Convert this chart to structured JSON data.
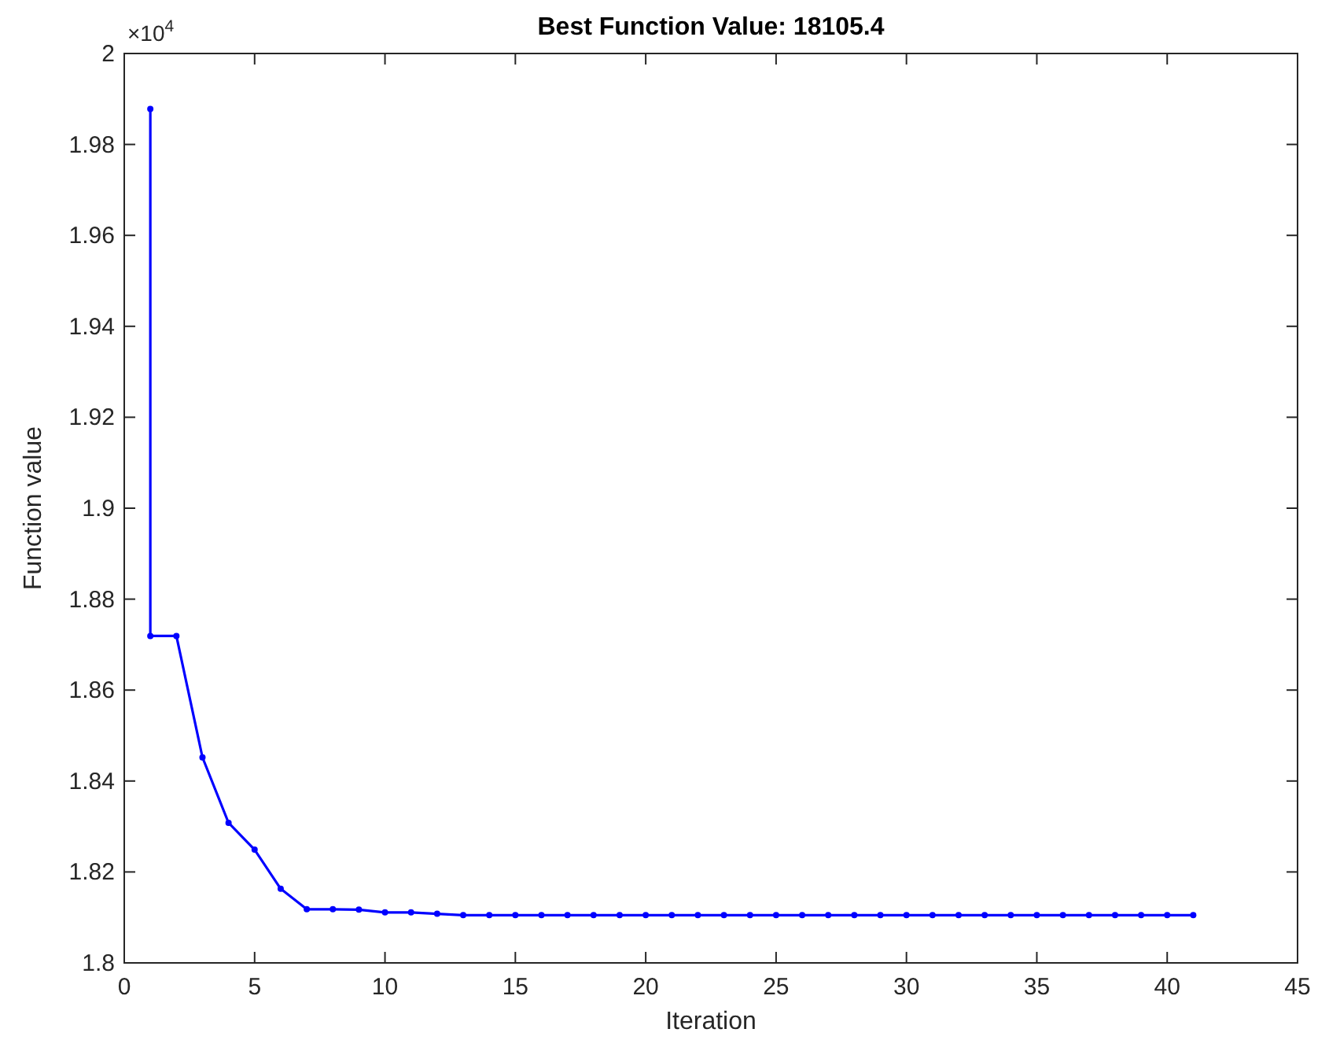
{
  "chart_data": {
    "type": "line",
    "title": "Best Function Value: 18105.4",
    "xlabel": "Iteration",
    "ylabel": "Function value",
    "annotations": [
      "×10$^{4}$"
    ],
    "x": [
      1,
      1,
      2,
      3,
      4,
      5,
      6,
      7,
      8,
      9,
      10,
      11,
      12,
      13,
      14,
      15,
      16,
      17,
      18,
      19,
      20,
      21,
      22,
      23,
      24,
      25,
      26,
      27,
      28,
      29,
      30,
      31,
      32,
      33,
      34,
      35,
      36,
      37,
      38,
      39,
      40,
      41
    ],
    "series": [
      {
        "color": "#0000ff",
        "values": [
          1.9878,
          1.8719,
          1.8719,
          1.8452,
          1.8308,
          1.8249,
          1.8163,
          1.8118,
          1.8118,
          1.8117,
          1.8111,
          1.8111,
          1.8108,
          1.8105,
          1.8105,
          1.8105,
          1.8105,
          1.8105,
          1.8105,
          1.8105,
          1.8105,
          1.8105,
          1.8105,
          1.8105,
          1.8105,
          1.8105,
          1.8105,
          1.8105,
          1.8105,
          1.8105,
          1.8105,
          1.8105,
          1.8105,
          1.8105,
          1.8105,
          1.8105,
          1.8105,
          1.8105,
          1.8105,
          1.8105,
          1.8105,
          1.8105
        ]
      }
    ],
    "xlim": [
      0,
      45
    ],
    "xticks": [
      0,
      5,
      10,
      15,
      20,
      25,
      30,
      35,
      40,
      45
    ],
    "ylim": [
      1.8,
      2
    ],
    "yticks": [
      1.8,
      1.82,
      1.84,
      1.86,
      1.88,
      1.9,
      1.92,
      1.94,
      1.96,
      1.98,
      2
    ],
    "marker": "circle",
    "line_style": "solid"
  }
}
